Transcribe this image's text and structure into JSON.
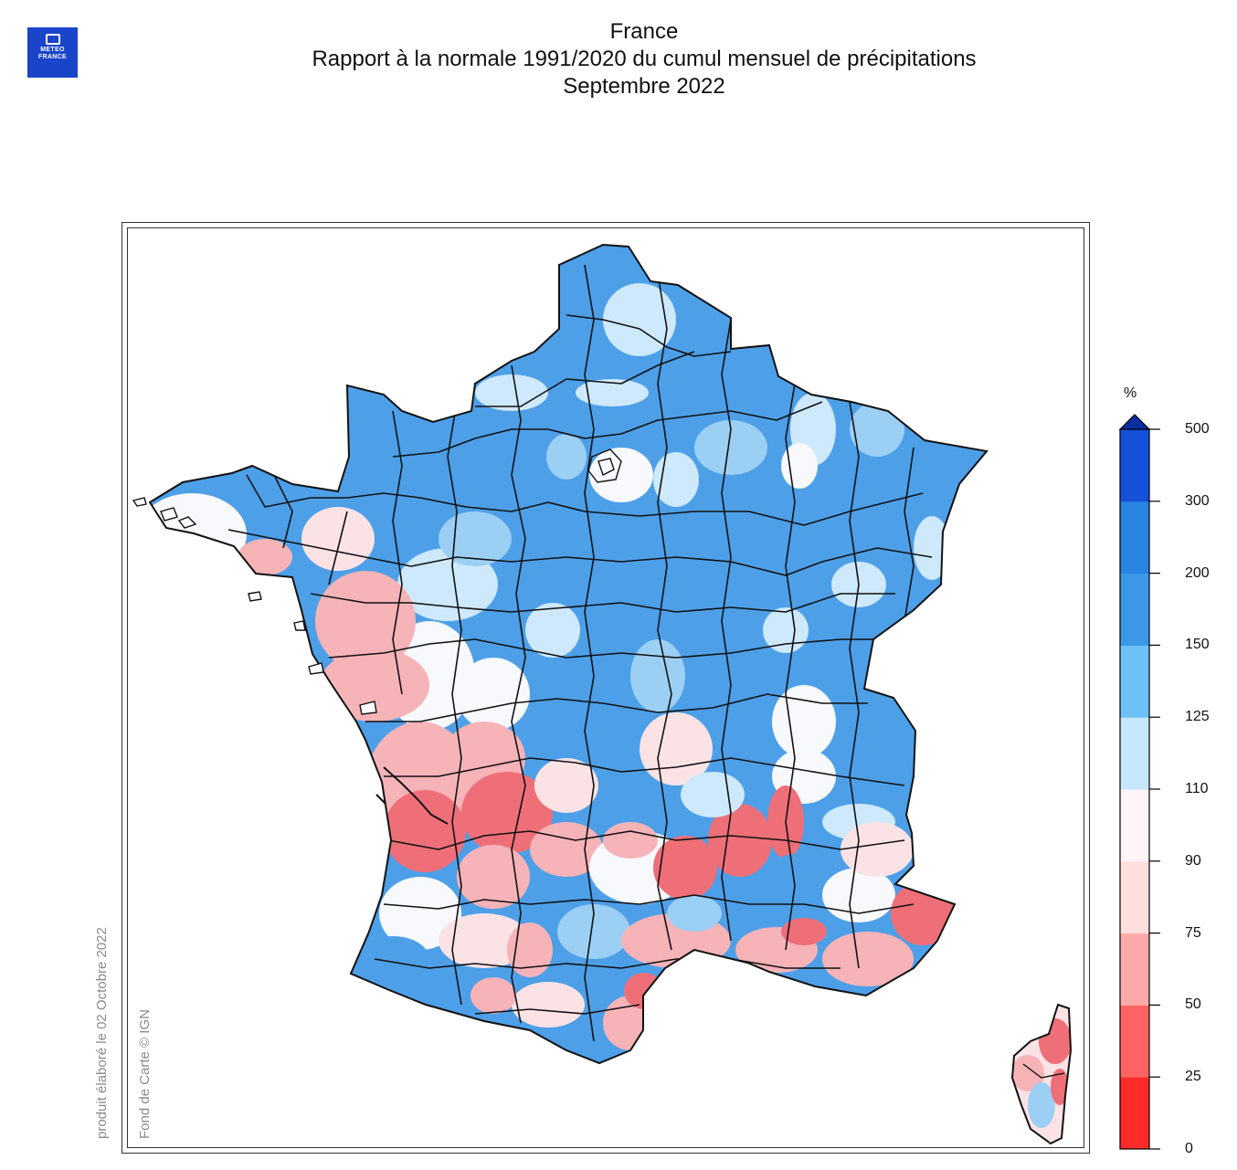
{
  "header": {
    "logo_line1": "METEO",
    "logo_line2": "FRANCE",
    "title": "France",
    "subtitle": "Rapport à la normale 1991/2020 du cumul mensuel de précipitations",
    "period": "Septembre 2022"
  },
  "credits": {
    "produced": "produit élaboré le 02 Octobre 2022",
    "basemap": "Fond de Carte © IGN"
  },
  "legend": {
    "unit": "%",
    "labels": [
      "500",
      "300",
      "200",
      "150",
      "125",
      "110",
      "90",
      "75",
      "50",
      "25",
      "0"
    ],
    "bins": [
      {
        "color": "#ff2a2a"
      },
      {
        "color": "#ff6464"
      },
      {
        "color": "#ffaaaa"
      },
      {
        "color": "#ffdede"
      },
      {
        "color": "#fff4f6"
      },
      {
        "color": "#c6e6fb"
      },
      {
        "color": "#6cc0f3"
      },
      {
        "color": "#3c97e7"
      },
      {
        "color": "#2a84e2"
      },
      {
        "color": "#1450d8"
      }
    ]
  },
  "colors": {
    "blue_main": "#4d9fe8",
    "blue_light": "#9ccff4",
    "blue_pale": "#cde9fb",
    "white": "#f8f9fc",
    "pink_pale": "#fbe3e5",
    "pink": "#f6b3b8",
    "red": "#ee6f78",
    "border": "#111111"
  }
}
